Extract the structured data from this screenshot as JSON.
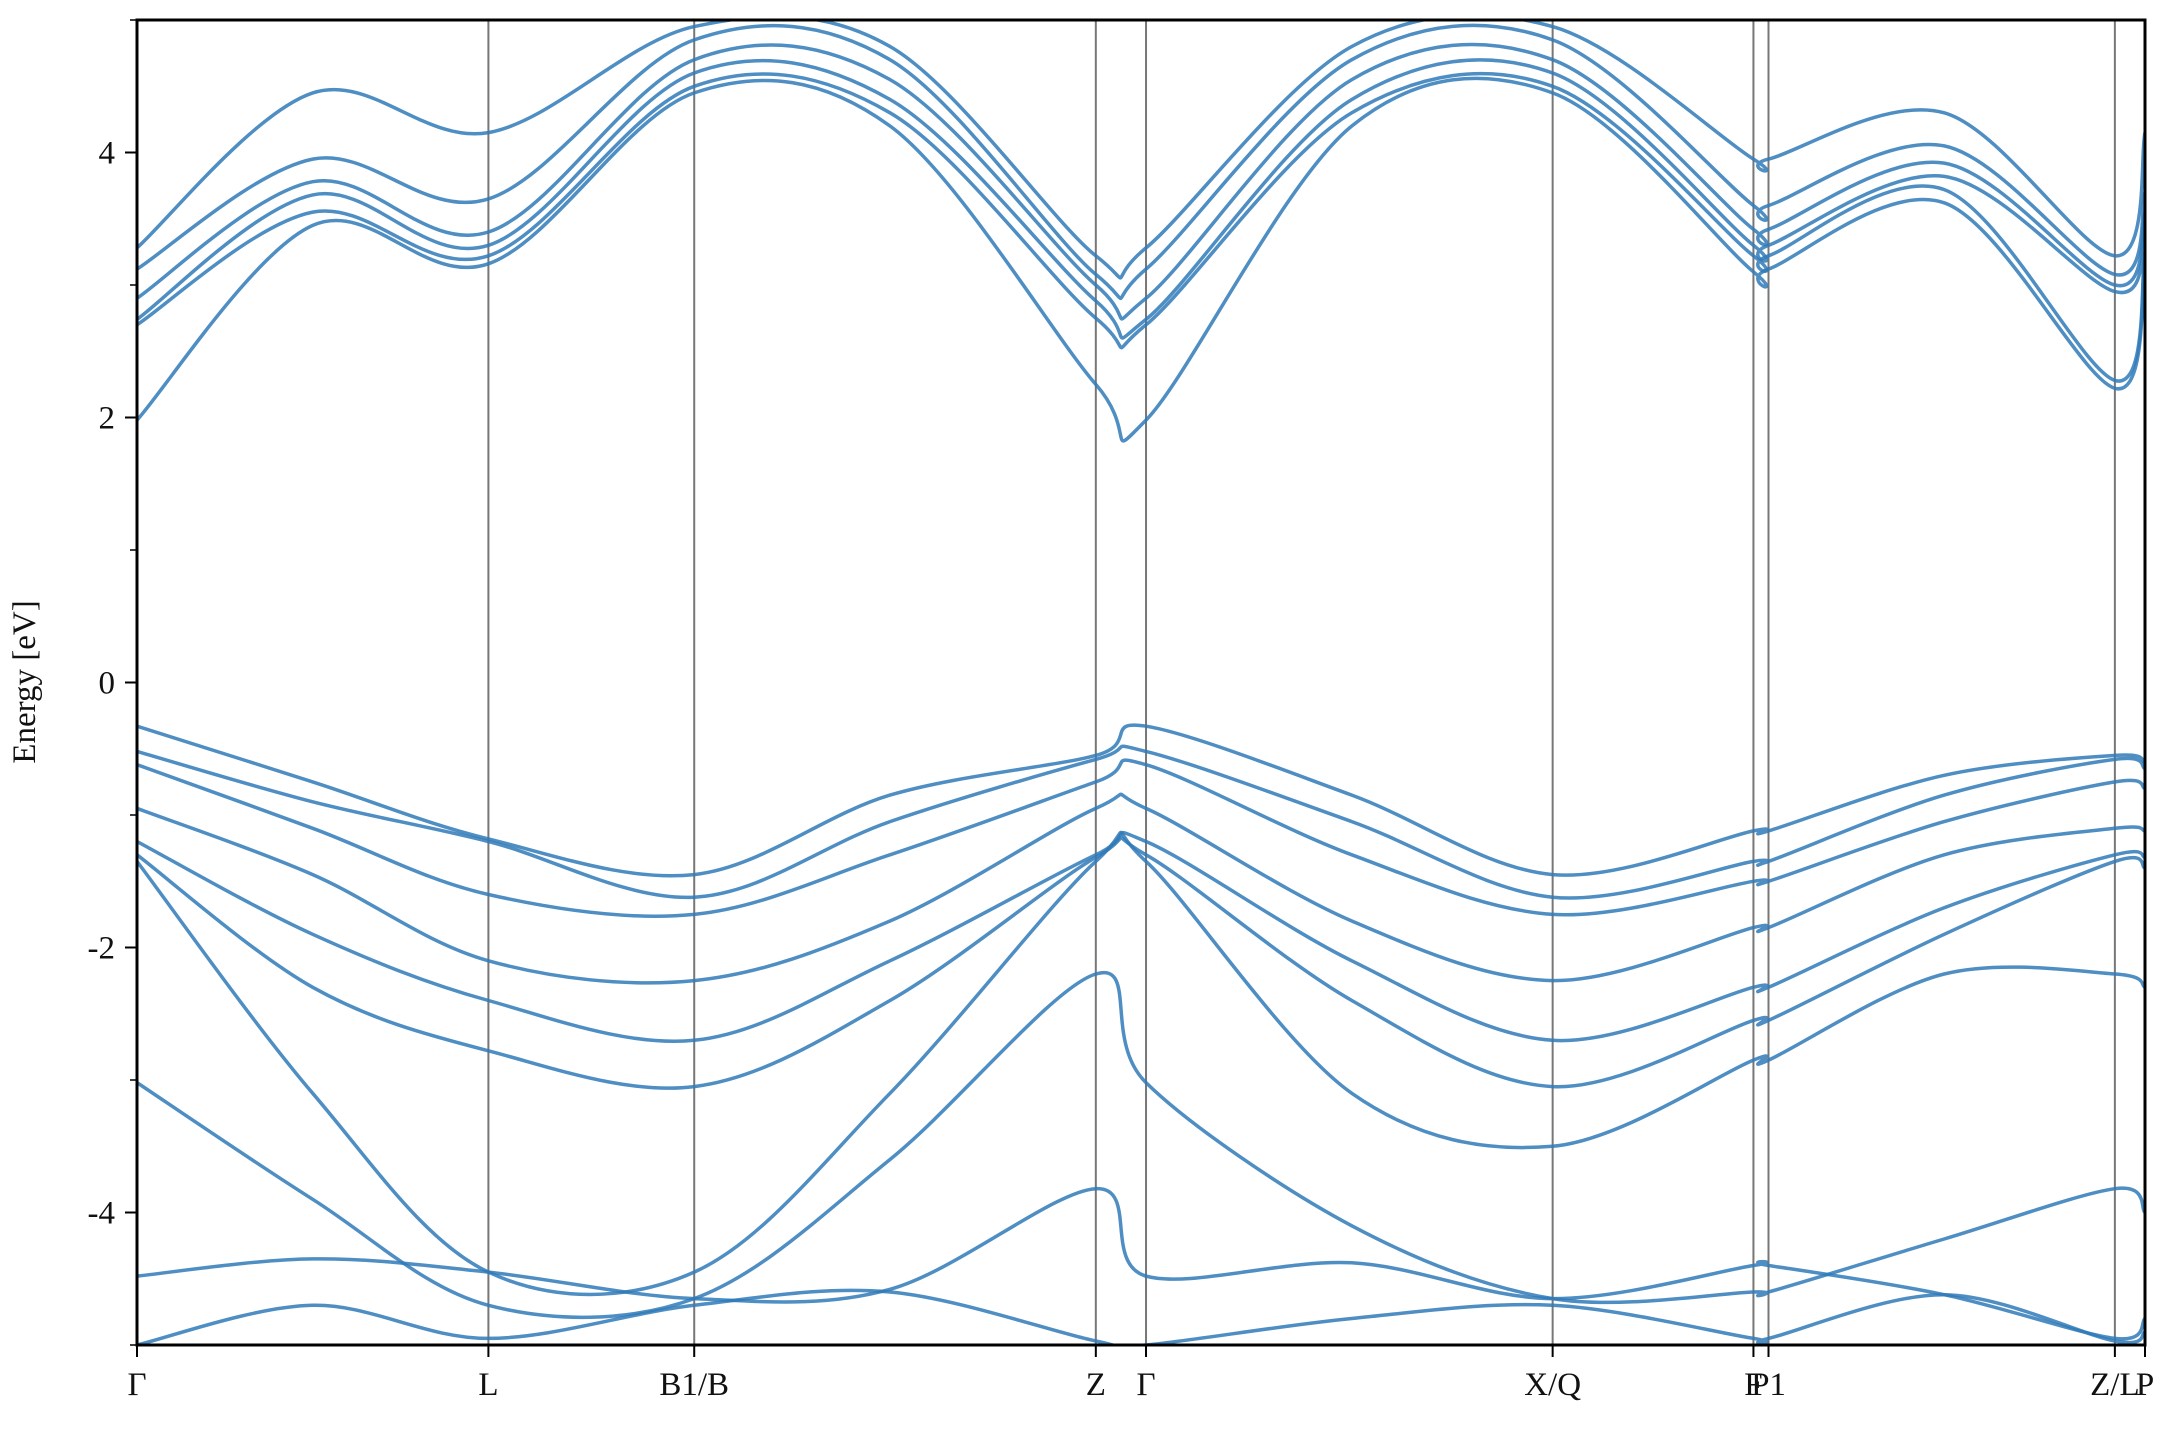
{
  "chart_data": {
    "type": "line",
    "title": "",
    "ylabel": "Energy [eV]",
    "xlabel": "",
    "ylim": [
      -5,
      5
    ],
    "yticks": [
      -4,
      -2,
      0,
      2,
      4
    ],
    "ytick_labels": [
      "-4",
      "-2",
      "0",
      "2",
      "4"
    ],
    "xlim": [
      0,
      4.0
    ],
    "high_symmetry_points": [
      {
        "label": "Γ",
        "x": 0.0
      },
      {
        "label": "L",
        "x": 0.7
      },
      {
        "label": "B1/B",
        "x": 1.11
      },
      {
        "label": "Z",
        "x": 1.91
      },
      {
        "label": "Γ",
        "x": 2.01
      },
      {
        "label": "X/Q",
        "x": 2.82
      },
      {
        "label": "F",
        "x": 3.22
      },
      {
        "label": "P1",
        "x": 3.25
      },
      {
        "label": "Z/L",
        "x": 3.94
      },
      {
        "label": "P",
        "x": 4.0
      }
    ],
    "grid": false,
    "legend": "none",
    "line_color": "#2f7ab8",
    "note_style": "electronic band structure, all bands in a single color",
    "series": [
      {
        "x": [
          0,
          0.35,
          0.7,
          1.11,
          1.5,
          1.91,
          2.01,
          2.42,
          2.82,
          3.22,
          3.25,
          3.6,
          3.94,
          4.0
        ],
        "values": [
          1.98,
          3.45,
          3.16,
          4.45,
          4.2,
          2.25,
          1.98,
          4.2,
          4.45,
          3.1,
          3.12,
          3.62,
          2.22,
          3.2
        ]
      },
      {
        "x": [
          0,
          0.35,
          0.7,
          1.11,
          1.5,
          1.91,
          2.01,
          2.42,
          2.82,
          3.22,
          3.25,
          3.6,
          3.94,
          4.0
        ],
        "values": [
          2.7,
          3.55,
          3.22,
          4.5,
          4.3,
          2.75,
          2.7,
          4.3,
          4.5,
          3.22,
          3.22,
          3.72,
          2.28,
          3.25
        ]
      },
      {
        "x": [
          0,
          0.35,
          0.7,
          1.11,
          1.5,
          1.91,
          2.01,
          2.42,
          2.82,
          3.22,
          3.25,
          3.6,
          3.94,
          4.0
        ],
        "values": [
          2.74,
          3.68,
          3.3,
          4.6,
          4.4,
          2.88,
          2.74,
          4.4,
          4.6,
          3.3,
          3.3,
          3.82,
          2.95,
          3.4
        ]
      },
      {
        "x": [
          0,
          0.35,
          0.7,
          1.11,
          1.5,
          1.91,
          2.01,
          2.42,
          2.82,
          3.22,
          3.25,
          3.6,
          3.94,
          4.0
        ],
        "values": [
          2.9,
          3.78,
          3.4,
          4.7,
          4.55,
          3.0,
          2.9,
          4.55,
          4.7,
          3.42,
          3.42,
          3.92,
          3.0,
          3.55
        ]
      },
      {
        "x": [
          0,
          0.35,
          0.7,
          1.11,
          1.5,
          1.91,
          2.01,
          2.42,
          2.82,
          3.22,
          3.25,
          3.6,
          3.94,
          4.0
        ],
        "values": [
          3.12,
          3.95,
          3.65,
          4.85,
          4.7,
          3.08,
          3.12,
          4.7,
          4.85,
          3.6,
          3.6,
          4.05,
          3.08,
          3.7
        ]
      },
      {
        "x": [
          0,
          0.35,
          0.7,
          1.11,
          1.5,
          1.91,
          2.01,
          2.42,
          2.82,
          3.22,
          3.25,
          3.6,
          3.94,
          4.0
        ],
        "values": [
          3.28,
          4.45,
          4.15,
          4.95,
          4.8,
          3.22,
          3.28,
          4.8,
          4.95,
          3.95,
          3.95,
          4.3,
          3.22,
          4.15
        ]
      },
      {
        "x": [
          0,
          0.35,
          0.7,
          1.11,
          1.5,
          1.91,
          2.01,
          2.42,
          2.82,
          3.22,
          3.25,
          3.6,
          3.94,
          4.0
        ],
        "values": [
          -0.33,
          -0.75,
          -1.18,
          -1.45,
          -0.85,
          -0.55,
          -0.33,
          -0.85,
          -1.45,
          -1.12,
          -1.12,
          -0.7,
          -0.55,
          -0.6
        ]
      },
      {
        "x": [
          0,
          0.35,
          0.7,
          1.11,
          1.5,
          1.91,
          2.01,
          2.42,
          2.82,
          3.22,
          3.25,
          3.6,
          3.94,
          4.0
        ],
        "values": [
          -0.52,
          -0.9,
          -1.2,
          -1.62,
          -1.05,
          -0.58,
          -0.52,
          -1.05,
          -1.62,
          -1.35,
          -1.35,
          -0.85,
          -0.58,
          -0.65
        ]
      },
      {
        "x": [
          0,
          0.35,
          0.7,
          1.11,
          1.5,
          1.91,
          2.01,
          2.42,
          2.82,
          3.22,
          3.25,
          3.6,
          3.94,
          4.0
        ],
        "values": [
          -0.62,
          -1.1,
          -1.6,
          -1.75,
          -1.3,
          -0.75,
          -0.62,
          -1.3,
          -1.75,
          -1.5,
          -1.5,
          -1.05,
          -0.75,
          -0.8
        ]
      },
      {
        "x": [
          0,
          0.35,
          0.7,
          1.11,
          1.5,
          1.91,
          2.01,
          2.42,
          2.82,
          3.22,
          3.25,
          3.6,
          3.94,
          4.0
        ],
        "values": [
          -0.95,
          -1.45,
          -2.1,
          -2.25,
          -1.8,
          -0.95,
          -0.95,
          -1.8,
          -2.25,
          -1.85,
          -1.85,
          -1.3,
          -1.1,
          -1.12
        ]
      },
      {
        "x": [
          0,
          0.35,
          0.7,
          1.11,
          1.5,
          1.91,
          2.01,
          2.42,
          2.82,
          3.22,
          3.25,
          3.6,
          3.94,
          4.0
        ],
        "values": [
          -1.2,
          -1.9,
          -2.4,
          -2.7,
          -2.1,
          -1.3,
          -1.2,
          -2.1,
          -2.7,
          -2.3,
          -2.3,
          -1.7,
          -1.3,
          -1.32
        ]
      },
      {
        "x": [
          0,
          0.35,
          0.7,
          1.11,
          1.5,
          1.91,
          2.01,
          2.42,
          2.82,
          3.22,
          3.25,
          3.6,
          3.94,
          4.0
        ],
        "values": [
          -1.3,
          -2.3,
          -2.78,
          -3.05,
          -2.4,
          -1.32,
          -1.3,
          -2.4,
          -3.05,
          -2.55,
          -2.55,
          -1.9,
          -1.35,
          -1.4
        ]
      },
      {
        "x": [
          0,
          0.35,
          0.7,
          1.11,
          1.5,
          1.91,
          2.01,
          2.42,
          2.82,
          3.22,
          3.25,
          3.6,
          3.94,
          4.0
        ],
        "values": [
          -1.35,
          -3.1,
          -4.45,
          -4.45,
          -3.1,
          -1.35,
          -1.35,
          -3.1,
          -3.5,
          -2.85,
          -2.85,
          -2.2,
          -2.2,
          -2.3
        ]
      },
      {
        "x": [
          0,
          0.35,
          0.7,
          1.11,
          1.5,
          1.91,
          2.01,
          2.42,
          2.82,
          3.22,
          3.25,
          3.6,
          3.94,
          4.0
        ],
        "values": [
          -3.02,
          -3.9,
          -4.7,
          -4.65,
          -3.6,
          -2.2,
          -3.02,
          -4.1,
          -4.65,
          -4.6,
          -4.6,
          -4.2,
          -3.82,
          -4.0
        ]
      },
      {
        "x": [
          0,
          0.35,
          0.7,
          1.11,
          1.5,
          1.91,
          2.01,
          2.42,
          2.82,
          3.22,
          3.25,
          3.6,
          3.94,
          4.0
        ],
        "values": [
          -4.48,
          -4.35,
          -4.45,
          -4.65,
          -4.58,
          -3.82,
          -4.48,
          -4.38,
          -4.65,
          -4.4,
          -4.4,
          -4.62,
          -4.95,
          -4.8
        ]
      },
      {
        "x": [
          0,
          0.35,
          0.7,
          1.11,
          1.5,
          1.91,
          2.01,
          2.42,
          2.82,
          3.22,
          3.25,
          3.6,
          3.94,
          4.0
        ],
        "values": [
          -5.0,
          -4.7,
          -4.95,
          -4.7,
          -4.6,
          -4.97,
          -5.0,
          -4.8,
          -4.7,
          -4.95,
          -4.95,
          -4.62,
          -4.97,
          -4.9
        ]
      }
    ]
  }
}
